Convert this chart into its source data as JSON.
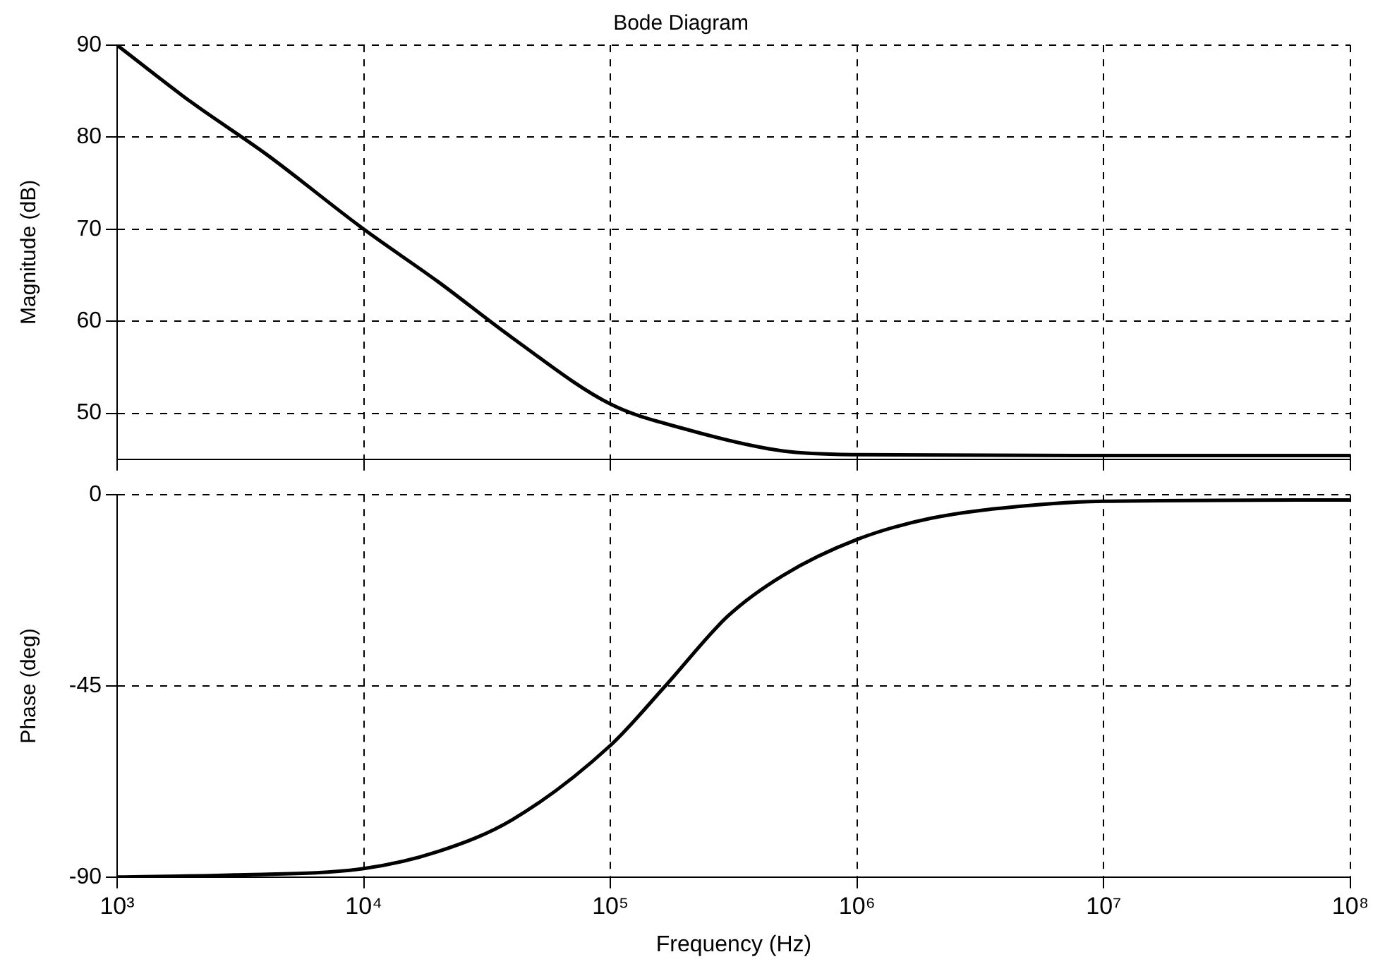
{
  "chart_data": [
    {
      "type": "line",
      "title": "Bode Diagram",
      "ylabel": "Magnitude (dB)",
      "log": "x",
      "grid": true,
      "tick_labels": "y",
      "xlim": [
        1000,
        100000000
      ],
      "ylim": [
        45,
        90
      ],
      "yticks": [
        50,
        60,
        70,
        80,
        90
      ],
      "xticks": [
        {
          "value": 1000,
          "label": null
        },
        {
          "value": 10000,
          "label": null
        },
        {
          "value": 100000,
          "label": null
        },
        {
          "value": 1000000,
          "label": null
        },
        {
          "value": 10000000,
          "label": null
        },
        {
          "value": 100000000,
          "label": null
        }
      ],
      "x": [
        1000,
        2000,
        4000,
        10000,
        20000,
        40000,
        100000,
        200000,
        500000,
        1000000,
        10000000,
        100000000
      ],
      "series": [
        {
          "color": "#000000",
          "values": [
            90,
            83.8,
            78.2,
            70,
            64.3,
            58.2,
            51,
            48.3,
            45.9,
            45.5,
            45.4,
            45.4
          ]
        }
      ]
    },
    {
      "type": "line",
      "xlabel": "Frequency (Hz)",
      "ylabel": "Phase (deg)",
      "log": "x",
      "grid": true,
      "xlim": [
        1000,
        100000000
      ],
      "ylim": [
        -90,
        0
      ],
      "yticks": [
        -90,
        -45,
        0
      ],
      "xticks": [
        {
          "value": 1000,
          "label": "10³"
        },
        {
          "value": 10000,
          "label": "10⁴"
        },
        {
          "value": 100000,
          "label": "10⁵"
        },
        {
          "value": 1000000,
          "label": "10⁶"
        },
        {
          "value": 10000000,
          "label": "10⁷"
        },
        {
          "value": 100000000,
          "label": "10⁸"
        }
      ],
      "x": [
        1000,
        3000,
        10000,
        20000,
        40000,
        100000,
        167000,
        300000,
        500000,
        1000000,
        2000000,
        5000000,
        10000000,
        100000000
      ],
      "series": [
        {
          "color": "#000000",
          "values": [
            -90,
            -89.5,
            -88,
            -84,
            -76.5,
            -59,
            -45,
            -28.5,
            -19,
            -10.5,
            -5.5,
            -2.5,
            -1.5,
            -1.2
          ]
        }
      ]
    }
  ]
}
